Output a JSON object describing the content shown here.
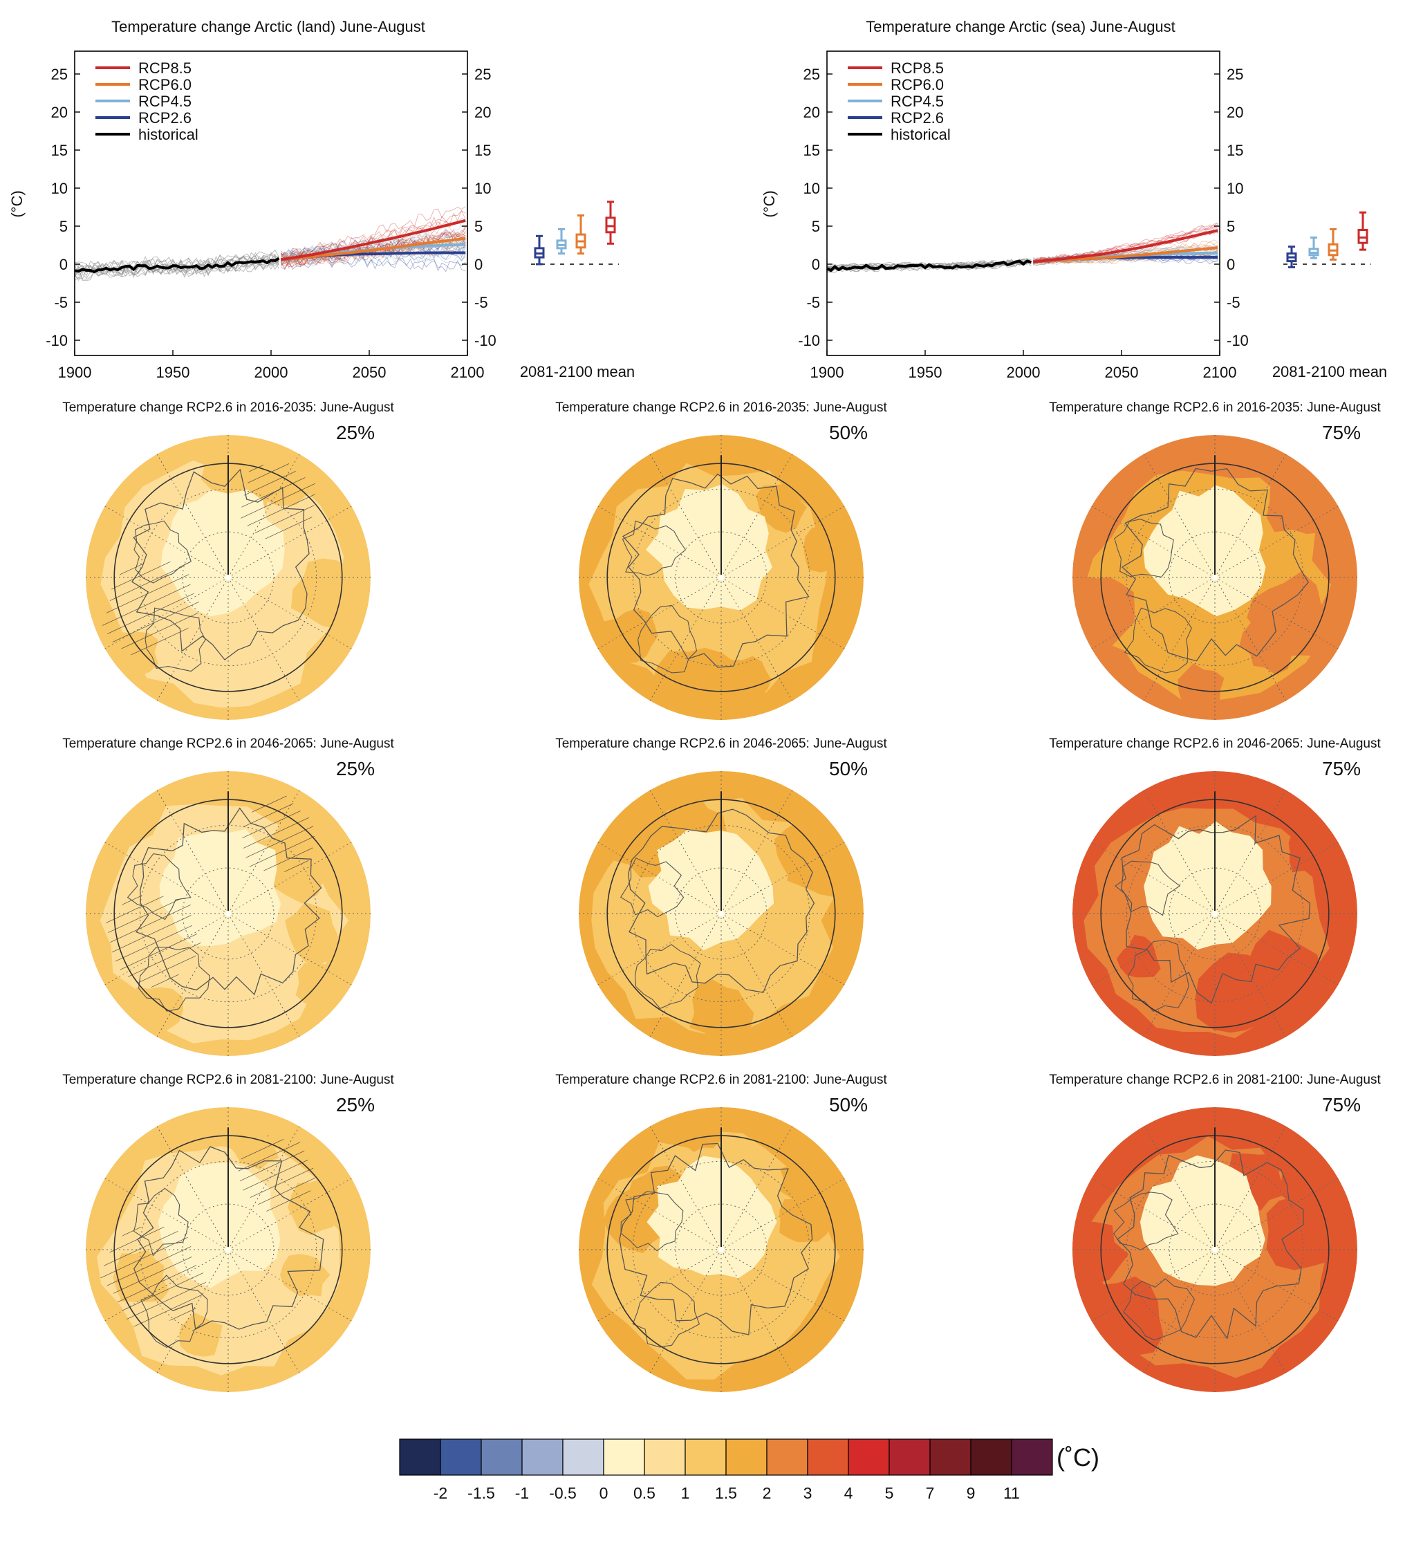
{
  "colors": {
    "rcp85": "#cc2a2a",
    "rcp60": "#e57a2e",
    "rcp45": "#7fb2d8",
    "rcp26": "#2b3f8f",
    "historical": "#000000"
  },
  "chart_data": [
    {
      "type": "line",
      "title": "Temperature change Arctic (land) June-August",
      "ylabel": "(°C)",
      "xlim": [
        1900,
        2100
      ],
      "ylim": [
        -12,
        28
      ],
      "xticks": [
        "1900",
        "1950",
        "2000",
        "2050",
        "2100"
      ],
      "yticks": [
        "-10",
        "-5",
        "0",
        "5",
        "10",
        "15",
        "20",
        "25"
      ],
      "legend": [
        "RCP8.5",
        "RCP6.0",
        "RCP4.5",
        "RCP2.6",
        "historical"
      ],
      "legend_position": "top-left",
      "series": [
        {
          "name": "historical",
          "x": [
            1900,
            1920,
            1940,
            1960,
            1980,
            2005
          ],
          "y": [
            -1.0,
            -0.6,
            -0.3,
            -0.5,
            0.0,
            0.6
          ]
        },
        {
          "name": "RCP2.6",
          "x": [
            2005,
            2020,
            2040,
            2060,
            2080,
            2100
          ],
          "y": [
            0.6,
            1.0,
            1.3,
            1.4,
            1.5,
            1.5
          ]
        },
        {
          "name": "RCP4.5",
          "x": [
            2005,
            2020,
            2040,
            2060,
            2080,
            2100
          ],
          "y": [
            0.6,
            1.1,
            1.6,
            2.1,
            2.4,
            2.6
          ]
        },
        {
          "name": "RCP6.0",
          "x": [
            2005,
            2020,
            2040,
            2060,
            2080,
            2100
          ],
          "y": [
            0.6,
            1.0,
            1.5,
            2.1,
            2.8,
            3.4
          ]
        },
        {
          "name": "RCP8.5",
          "x": [
            2005,
            2020,
            2040,
            2060,
            2080,
            2100
          ],
          "y": [
            0.6,
            1.2,
            2.2,
            3.3,
            4.5,
            5.8
          ]
        }
      ],
      "boxplot_label": "2081-2100 mean",
      "boxplots": [
        {
          "name": "RCP2.6",
          "whisker_low": 0.0,
          "q1": 0.9,
          "median": 1.4,
          "q3": 2.1,
          "whisker_high": 3.7
        },
        {
          "name": "RCP4.5",
          "whisker_low": 1.4,
          "q1": 2.1,
          "median": 2.5,
          "q3": 3.1,
          "whisker_high": 4.6
        },
        {
          "name": "RCP6.0",
          "whisker_low": 1.4,
          "q1": 2.2,
          "median": 3.0,
          "q3": 3.9,
          "whisker_high": 6.4
        },
        {
          "name": "RCP8.5",
          "whisker_low": 2.7,
          "q1": 4.2,
          "median": 5.0,
          "q3": 6.1,
          "whisker_high": 8.2
        }
      ]
    },
    {
      "type": "line",
      "title": "Temperature change Arctic (sea) June-August",
      "ylabel": "(°C)",
      "xlim": [
        1900,
        2100
      ],
      "ylim": [
        -12,
        28
      ],
      "xticks": [
        "1900",
        "1950",
        "2000",
        "2050",
        "2100"
      ],
      "yticks": [
        "-10",
        "-5",
        "0",
        "5",
        "10",
        "15",
        "20",
        "25"
      ],
      "legend": [
        "RCP8.5",
        "RCP6.0",
        "RCP4.5",
        "RCP2.6",
        "historical"
      ],
      "legend_position": "top-left",
      "series": [
        {
          "name": "historical",
          "x": [
            1900,
            1920,
            1940,
            1960,
            1980,
            2005
          ],
          "y": [
            -0.6,
            -0.4,
            -0.3,
            -0.3,
            -0.1,
            0.3
          ]
        },
        {
          "name": "RCP2.6",
          "x": [
            2005,
            2020,
            2040,
            2060,
            2080,
            2100
          ],
          "y": [
            0.3,
            0.6,
            0.8,
            0.9,
            0.9,
            0.9
          ]
        },
        {
          "name": "RCP4.5",
          "x": [
            2005,
            2020,
            2040,
            2060,
            2080,
            2100
          ],
          "y": [
            0.3,
            0.6,
            0.9,
            1.2,
            1.4,
            1.5
          ]
        },
        {
          "name": "RCP6.0",
          "x": [
            2005,
            2020,
            2040,
            2060,
            2080,
            2100
          ],
          "y": [
            0.3,
            0.6,
            0.8,
            1.2,
            1.7,
            2.2
          ]
        },
        {
          "name": "RCP8.5",
          "x": [
            2005,
            2020,
            2040,
            2060,
            2080,
            2100
          ],
          "y": [
            0.3,
            0.7,
            1.3,
            2.2,
            3.3,
            4.5
          ]
        }
      ],
      "boxplot_label": "2081-2100 mean",
      "boxplots": [
        {
          "name": "RCP2.6",
          "whisker_low": -0.4,
          "q1": 0.4,
          "median": 0.9,
          "q3": 1.4,
          "whisker_high": 2.3
        },
        {
          "name": "RCP4.5",
          "whisker_low": 0.8,
          "q1": 1.2,
          "median": 1.5,
          "q3": 2.0,
          "whisker_high": 3.5
        },
        {
          "name": "RCP6.0",
          "whisker_low": 0.6,
          "q1": 1.2,
          "median": 1.8,
          "q3": 2.6,
          "whisker_high": 4.6
        },
        {
          "name": "RCP8.5",
          "whisker_low": 1.9,
          "q1": 2.8,
          "median": 3.5,
          "q3": 4.5,
          "whisker_high": 6.8
        }
      ]
    },
    {
      "type": "heatmap",
      "panels": [
        {
          "title": "Temperature change RCP2.6 in 2016-2035: June-August",
          "percentile": "25%",
          "level": 1,
          "hatched": true
        },
        {
          "title": "Temperature change RCP2.6 in 2016-2035: June-August",
          "percentile": "50%",
          "level": 2,
          "hatched": false
        },
        {
          "title": "Temperature change RCP2.6 in 2016-2035: June-August",
          "percentile": "75%",
          "level": 3,
          "hatched": false
        },
        {
          "title": "Temperature change RCP2.6 in 2046-2065: June-August",
          "percentile": "25%",
          "level": 1,
          "hatched": true
        },
        {
          "title": "Temperature change RCP2.6 in 2046-2065: June-August",
          "percentile": "50%",
          "level": 2,
          "hatched": false
        },
        {
          "title": "Temperature change RCP2.6 in 2046-2065: June-August",
          "percentile": "75%",
          "level": 4,
          "hatched": false
        },
        {
          "title": "Temperature change RCP2.6 in 2081-2100: June-August",
          "percentile": "25%",
          "level": 1,
          "hatched": true
        },
        {
          "title": "Temperature change RCP2.6 in 2081-2100: June-August",
          "percentile": "50%",
          "level": 2,
          "hatched": false
        },
        {
          "title": "Temperature change RCP2.6 in 2081-2100: June-August",
          "percentile": "75%",
          "level": 4,
          "hatched": false
        }
      ],
      "colorbar": {
        "unit": "(˚C)",
        "labels": [
          "-2",
          "-1.5",
          "-1",
          "-0.5",
          "0",
          "0.5",
          "1",
          "1.5",
          "2",
          "3",
          "4",
          "5",
          "7",
          "9",
          "11"
        ],
        "colors": [
          "#1f2a55",
          "#3e5a9d",
          "#6b82b5",
          "#9aabcf",
          "#ccd4e4",
          "#fff4c7",
          "#fddf9b",
          "#f8c766",
          "#f1ac3e",
          "#e8833c",
          "#e0572e",
          "#d52a2a",
          "#b02430",
          "#7e1e25",
          "#57151c",
          "#5a1a3c"
        ]
      }
    }
  ]
}
